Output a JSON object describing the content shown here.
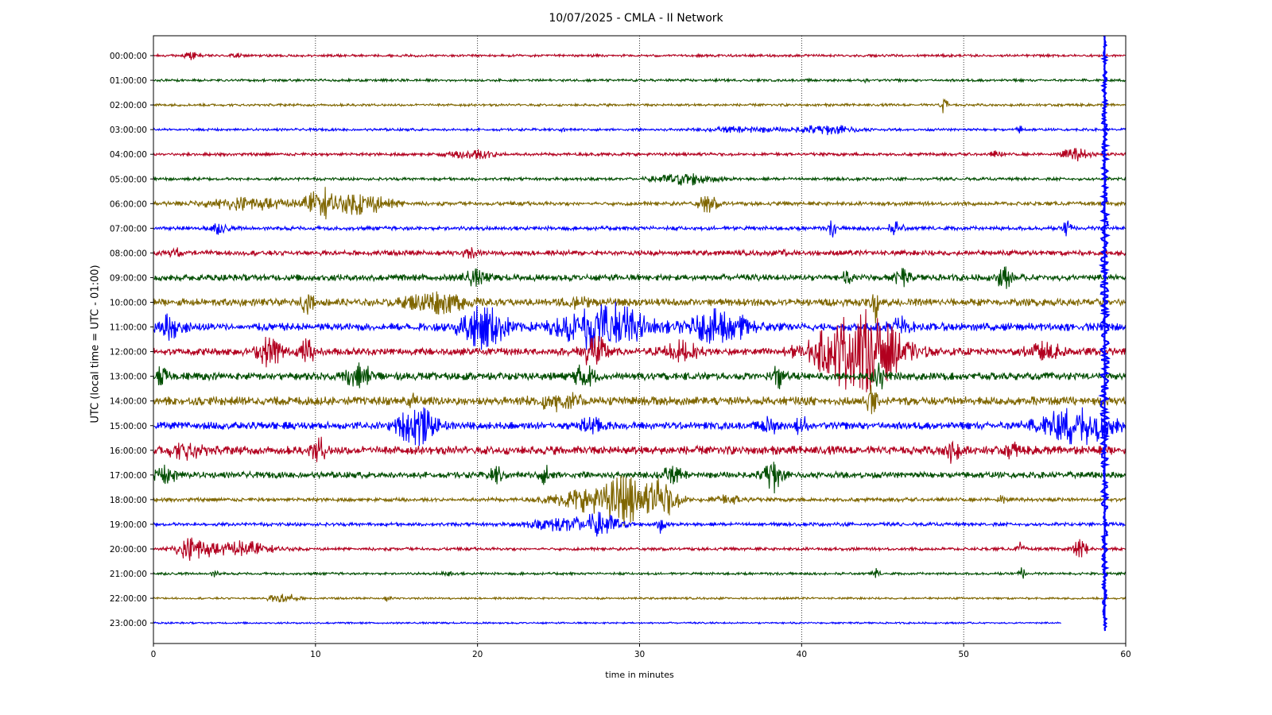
{
  "chart_data": {
    "type": "line",
    "title": "10/07/2025 - CMLA - II Network",
    "xlabel": "time in minutes",
    "ylabel": "UTC (local time = UTC - 01:00)",
    "xlim": [
      0,
      60
    ],
    "x_ticks": [
      0,
      10,
      20,
      30,
      40,
      50,
      60
    ],
    "grid": "vertical-dotted",
    "color_cycle": [
      "#b2001f",
      "#004d00",
      "#7f6600",
      "#0000ff"
    ],
    "series": [
      {
        "label": "00:00:00",
        "base_amp": 0.1,
        "events": [
          {
            "t": 2.3,
            "amp": 0.25,
            "dur": 0.6
          },
          {
            "t": 5.1,
            "amp": 0.15,
            "dur": 0.4
          }
        ]
      },
      {
        "label": "01:00:00",
        "base_amp": 0.1,
        "events": [
          {
            "t": 44.0,
            "amp": 0.15,
            "dur": 0.3
          }
        ]
      },
      {
        "label": "02:00:00",
        "base_amp": 0.1,
        "events": [
          {
            "t": 48.8,
            "amp": 0.7,
            "dur": 0.3
          }
        ]
      },
      {
        "label": "03:00:00",
        "base_amp": 0.1,
        "events": [
          {
            "t": 41.5,
            "amp": 0.35,
            "dur": 2.5
          },
          {
            "t": 36.5,
            "amp": 0.2,
            "dur": 3.0
          },
          {
            "t": 53.5,
            "amp": 0.25,
            "dur": 0.3
          },
          {
            "t": 25.3,
            "amp": 0.2,
            "dur": 0.2
          }
        ]
      },
      {
        "label": "04:00:00",
        "base_amp": 0.12,
        "events": [
          {
            "t": 19.8,
            "amp": 0.35,
            "dur": 2.0
          },
          {
            "t": 56.9,
            "amp": 0.45,
            "dur": 1.2
          },
          {
            "t": 52.0,
            "amp": 0.2,
            "dur": 0.5
          }
        ]
      },
      {
        "label": "05:00:00",
        "base_amp": 0.12,
        "events": [
          {
            "t": 32.8,
            "amp": 0.45,
            "dur": 2.4
          }
        ]
      },
      {
        "label": "06:00:00",
        "base_amp": 0.15,
        "events": [
          {
            "t": 6.0,
            "amp": 0.45,
            "dur": 4.0
          },
          {
            "t": 10.3,
            "amp": 1.15,
            "dur": 1.2
          },
          {
            "t": 12.8,
            "amp": 0.8,
            "dur": 2.5
          },
          {
            "t": 34.2,
            "amp": 0.7,
            "dur": 0.8
          }
        ]
      },
      {
        "label": "07:00:00",
        "base_amp": 0.16,
        "events": [
          {
            "t": 4.0,
            "amp": 0.35,
            "dur": 0.8
          },
          {
            "t": 41.9,
            "amp": 0.65,
            "dur": 0.3
          },
          {
            "t": 45.8,
            "amp": 0.45,
            "dur": 0.6
          },
          {
            "t": 56.4,
            "amp": 0.9,
            "dur": 0.3
          }
        ]
      },
      {
        "label": "08:00:00",
        "base_amp": 0.2,
        "events": [
          {
            "t": 1.3,
            "amp": 0.4,
            "dur": 0.4
          },
          {
            "t": 19.5,
            "amp": 0.35,
            "dur": 0.6
          },
          {
            "t": 39.0,
            "amp": 0.4,
            "dur": 0.3
          }
        ]
      },
      {
        "label": "09:00:00",
        "base_amp": 0.26,
        "events": [
          {
            "t": 19.8,
            "amp": 0.5,
            "dur": 1.0
          },
          {
            "t": 46.2,
            "amp": 0.6,
            "dur": 0.6
          },
          {
            "t": 52.5,
            "amp": 0.8,
            "dur": 0.6
          },
          {
            "t": 42.8,
            "amp": 0.4,
            "dur": 0.4
          }
        ]
      },
      {
        "label": "10:00:00",
        "base_amp": 0.3,
        "events": [
          {
            "t": 17.5,
            "amp": 0.7,
            "dur": 2.5
          },
          {
            "t": 9.5,
            "amp": 0.8,
            "dur": 0.5
          },
          {
            "t": 44.5,
            "amp": 1.5,
            "dur": 0.3
          },
          {
            "t": 26.0,
            "amp": 0.5,
            "dur": 1.0
          }
        ]
      },
      {
        "label": "11:00:00",
        "base_amp": 0.32,
        "events": [
          {
            "t": 20.4,
            "amp": 1.5,
            "dur": 2.0
          },
          {
            "t": 27.8,
            "amp": 1.9,
            "dur": 3.5
          },
          {
            "t": 35.0,
            "amp": 1.2,
            "dur": 2.5
          },
          {
            "t": 1.0,
            "amp": 0.8,
            "dur": 1.2
          },
          {
            "t": 46.0,
            "amp": 0.7,
            "dur": 1.0
          }
        ]
      },
      {
        "label": "12:00:00",
        "base_amp": 0.3,
        "events": [
          {
            "t": 42.3,
            "amp": 1.4,
            "dur": 3.0
          },
          {
            "t": 44.2,
            "amp": 2.4,
            "dur": 3.0
          },
          {
            "t": 7.2,
            "amp": 1.1,
            "dur": 1.0
          },
          {
            "t": 9.5,
            "amp": 0.9,
            "dur": 0.6
          },
          {
            "t": 27.2,
            "amp": 1.3,
            "dur": 1.0
          },
          {
            "t": 32.5,
            "amp": 0.7,
            "dur": 1.5
          },
          {
            "t": 55.0,
            "amp": 0.6,
            "dur": 1.5
          }
        ]
      },
      {
        "label": "13:00:00",
        "base_amp": 0.3,
        "events": [
          {
            "t": 12.7,
            "amp": 0.8,
            "dur": 1.2
          },
          {
            "t": 26.6,
            "amp": 0.9,
            "dur": 0.8
          },
          {
            "t": 38.6,
            "amp": 0.9,
            "dur": 0.6
          },
          {
            "t": 44.8,
            "amp": 1.0,
            "dur": 0.6
          },
          {
            "t": 0.5,
            "amp": 0.6,
            "dur": 0.5
          }
        ]
      },
      {
        "label": "14:00:00",
        "base_amp": 0.35,
        "events": [
          {
            "t": 15.9,
            "amp": 0.7,
            "dur": 0.4
          },
          {
            "t": 44.3,
            "amp": 1.1,
            "dur": 0.4
          },
          {
            "t": 25.0,
            "amp": 0.6,
            "dur": 2.0
          }
        ]
      },
      {
        "label": "15:00:00",
        "base_amp": 0.3,
        "events": [
          {
            "t": 16.2,
            "amp": 1.5,
            "dur": 1.5
          },
          {
            "t": 57.0,
            "amp": 1.4,
            "dur": 3.0
          },
          {
            "t": 38.0,
            "amp": 0.7,
            "dur": 0.6
          },
          {
            "t": 40.0,
            "amp": 0.7,
            "dur": 0.5
          },
          {
            "t": 27.0,
            "amp": 0.5,
            "dur": 1.0
          }
        ]
      },
      {
        "label": "16:00:00",
        "base_amp": 0.35,
        "events": [
          {
            "t": 10.2,
            "amp": 0.9,
            "dur": 0.6
          },
          {
            "t": 49.3,
            "amp": 0.8,
            "dur": 0.6
          },
          {
            "t": 53.0,
            "amp": 0.5,
            "dur": 0.5
          },
          {
            "t": 2.0,
            "amp": 0.5,
            "dur": 1.5
          }
        ]
      },
      {
        "label": "17:00:00",
        "base_amp": 0.25,
        "events": [
          {
            "t": 38.2,
            "amp": 1.3,
            "dur": 0.8
          },
          {
            "t": 0.8,
            "amp": 0.6,
            "dur": 1.0
          },
          {
            "t": 21.2,
            "amp": 0.6,
            "dur": 0.6
          },
          {
            "t": 24.2,
            "amp": 0.6,
            "dur": 0.6
          },
          {
            "t": 32.0,
            "amp": 0.5,
            "dur": 1.0
          }
        ]
      },
      {
        "label": "18:00:00",
        "base_amp": 0.15,
        "events": [
          {
            "t": 27.0,
            "amp": 0.9,
            "dur": 3.0
          },
          {
            "t": 29.1,
            "amp": 1.6,
            "dur": 1.5
          },
          {
            "t": 31.3,
            "amp": 1.5,
            "dur": 1.5
          },
          {
            "t": 52.3,
            "amp": 0.5,
            "dur": 0.3
          },
          {
            "t": 35.5,
            "amp": 0.3,
            "dur": 1.5
          }
        ]
      },
      {
        "label": "19:00:00",
        "base_amp": 0.14,
        "events": [
          {
            "t": 25.5,
            "amp": 0.55,
            "dur": 3.0
          },
          {
            "t": 27.8,
            "amp": 0.7,
            "dur": 1.5
          },
          {
            "t": 31.3,
            "amp": 0.6,
            "dur": 0.4
          }
        ]
      },
      {
        "label": "20:00:00",
        "base_amp": 0.12,
        "events": [
          {
            "t": 2.5,
            "amp": 0.9,
            "dur": 1.5
          },
          {
            "t": 5.5,
            "amp": 0.6,
            "dur": 2.5
          },
          {
            "t": 57.2,
            "amp": 0.7,
            "dur": 0.6
          },
          {
            "t": 53.5,
            "amp": 0.5,
            "dur": 0.3
          }
        ]
      },
      {
        "label": "21:00:00",
        "base_amp": 0.1,
        "events": [
          {
            "t": 44.6,
            "amp": 0.4,
            "dur": 0.3
          },
          {
            "t": 53.6,
            "amp": 0.45,
            "dur": 0.3
          },
          {
            "t": 18.2,
            "amp": 0.2,
            "dur": 0.5
          },
          {
            "t": 3.8,
            "amp": 0.2,
            "dur": 0.4
          }
        ]
      },
      {
        "label": "22:00:00",
        "base_amp": 0.08,
        "events": [
          {
            "t": 8.0,
            "amp": 0.4,
            "dur": 1.2
          },
          {
            "t": 14.5,
            "amp": 0.25,
            "dur": 0.3
          }
        ]
      },
      {
        "label": "23:00:00",
        "base_amp": 0.07,
        "x_end": 56.0,
        "events": []
      }
    ],
    "spike": {
      "x": 58.7,
      "from_row": 0,
      "to_row": 23,
      "color": "#0000ff"
    }
  }
}
